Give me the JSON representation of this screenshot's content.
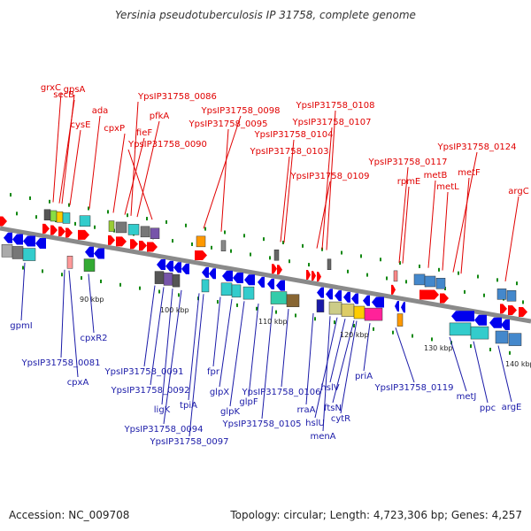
{
  "title": "Yersinia pseudotuberculosis IP 31758, complete genome",
  "accession": "Accession: NC_009708",
  "stats": "Topology: circular; Length: 4,723,306 bp; Genes: 4,257",
  "colors": {
    "top_label": "#e00000",
    "bottom_label": "#1a1aa8",
    "backbone": "#8a8a8a",
    "forward_gene": "#ff0000",
    "reverse_gene": "#0000ee",
    "tick": "#118811"
  },
  "scale_labels": [
    "90 kbp",
    "100 kbp",
    "110 kbp",
    "120 kbp",
    "130 kbp",
    "140 kbp"
  ],
  "top_labels": [
    "grxC",
    "secB",
    "gpsA",
    "cysE",
    "ada",
    "cpxP",
    "fieF",
    "pfkA",
    "YpsIP31758_0086",
    "YpsIP31758_0090",
    "YpsIP31758_0095",
    "YpsIP31758_0098",
    "YpsIP31758_0104",
    "YpsIP31758_0103",
    "YpsIP31758_0108",
    "YpsIP31758_0107",
    "YpsIP31758_0109",
    "rpmE",
    "YpsIP31758_0117",
    "metB",
    "metL",
    "metF",
    "YpsIP31758_0124",
    "argC"
  ],
  "bottom_labels": [
    "gpmI",
    "YpsIP31758_0081",
    "cpxR2",
    "cpxA",
    "YpsIP31758_0091",
    "YpsIP31758_0092",
    "ligK",
    "tpiA",
    "YpsIP31758_0094",
    "YpsIP31758_0097",
    "fpr",
    "glpX",
    "glpK",
    "glpF",
    "YpsIP31758_0105",
    "YpsIP31758_0106",
    "rraA",
    "menA",
    "hslU",
    "hslV",
    "ftsN",
    "cytR",
    "priA",
    "YpsIP31758_0119",
    "metJ",
    "ppc",
    "argE"
  ]
}
